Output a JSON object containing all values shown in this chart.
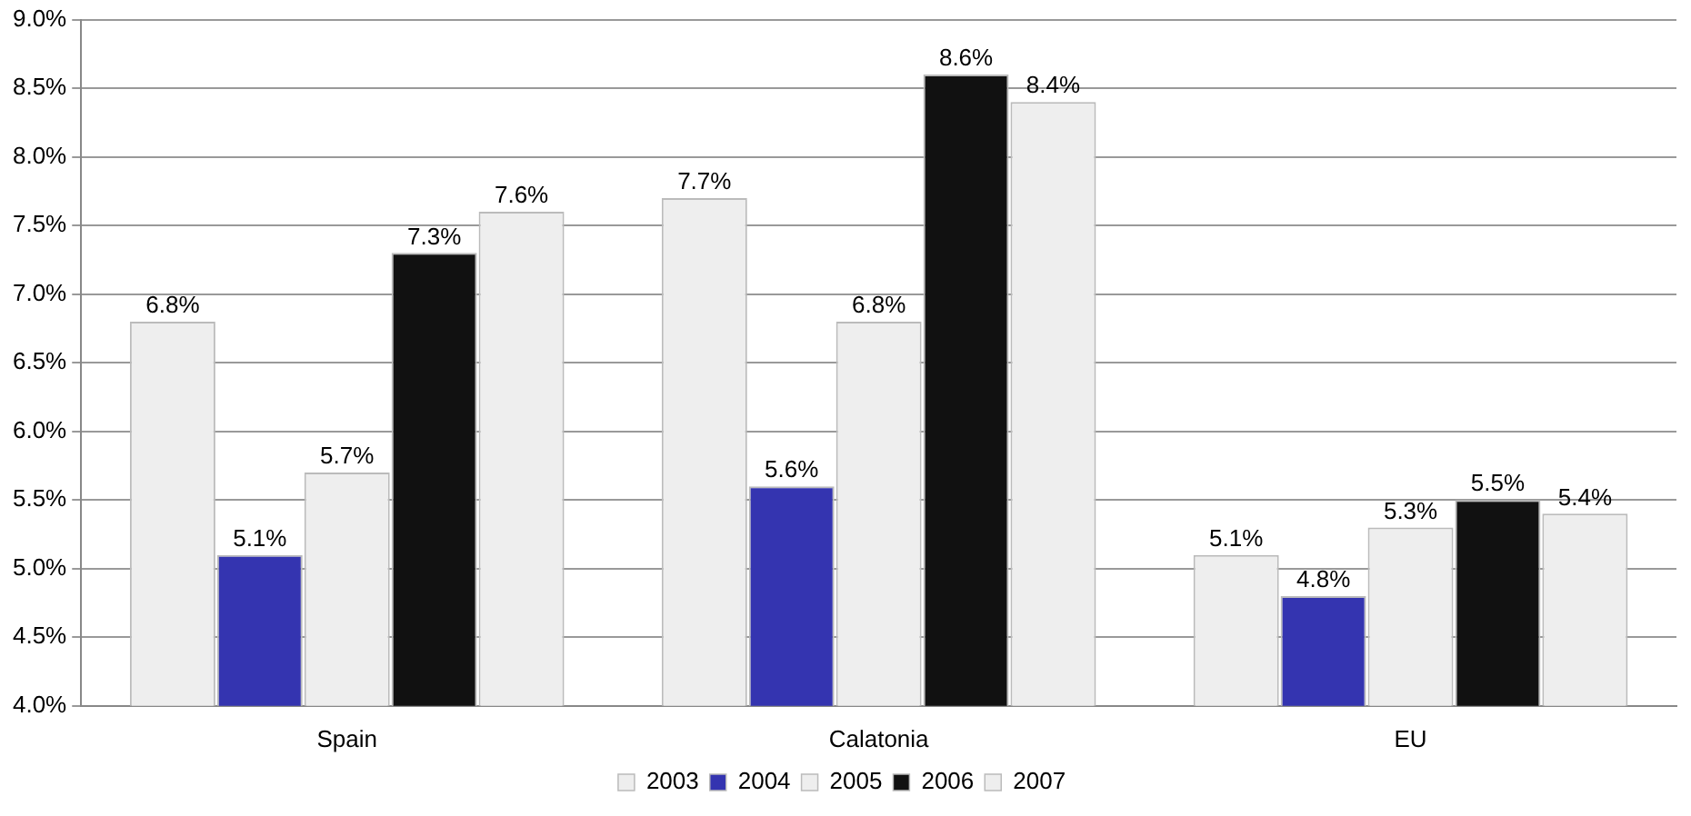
{
  "chart_data": {
    "type": "bar",
    "categories": [
      "Spain",
      "Calatonia",
      "EU"
    ],
    "series": [
      {
        "name": "2003",
        "color": "#eeeeee",
        "values": [
          6.8,
          7.7,
          5.1
        ],
        "value_labels": [
          "6.8%",
          "7.7%",
          "5.1%"
        ]
      },
      {
        "name": "2004",
        "color": "#3434b0",
        "values": [
          5.1,
          5.6,
          4.8
        ],
        "value_labels": [
          "5.1%",
          "5.6%",
          "4.8%"
        ]
      },
      {
        "name": "2005",
        "color": "#eeeeee",
        "values": [
          5.7,
          6.8,
          5.3
        ],
        "value_labels": [
          "5.7%",
          "6.8%",
          "5.3%"
        ]
      },
      {
        "name": "2006",
        "color": "#111111",
        "values": [
          7.3,
          8.6,
          5.5
        ],
        "value_labels": [
          "7.3%",
          "8.6%",
          "5.5%"
        ]
      },
      {
        "name": "2007",
        "color": "#eeeeee",
        "values": [
          7.6,
          8.4,
          5.4
        ],
        "value_labels": [
          "7.6%",
          "8.4%",
          "5.4%"
        ]
      }
    ],
    "ylim": [
      4.0,
      9.0
    ],
    "yticks": [
      {
        "value": 4.0,
        "label": "4.0%"
      },
      {
        "value": 4.5,
        "label": "4.5%"
      },
      {
        "value": 5.0,
        "label": "5.0%"
      },
      {
        "value": 5.5,
        "label": "5.5%"
      },
      {
        "value": 6.0,
        "label": "6.0%"
      },
      {
        "value": 6.5,
        "label": "6.5%"
      },
      {
        "value": 7.0,
        "label": "7.0%"
      },
      {
        "value": 7.5,
        "label": "7.5%"
      },
      {
        "value": 8.0,
        "label": "8.0%"
      },
      {
        "value": 8.5,
        "label": "8.5%"
      },
      {
        "value": 9.0,
        "label": "9.0%"
      }
    ],
    "grid": "y",
    "legend": "bottom"
  }
}
